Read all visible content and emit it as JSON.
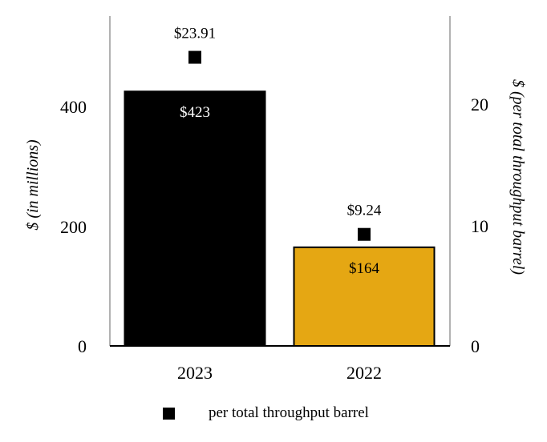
{
  "chart_data": {
    "type": "bar",
    "categories": [
      "2023",
      "2022"
    ],
    "series": [
      {
        "axis": "left",
        "values": [
          423,
          164
        ],
        "data_labels": [
          "$423",
          "$164"
        ],
        "colors": [
          "#000000",
          "#E5A713"
        ]
      },
      {
        "name": "per total throughput barrel",
        "axis": "right",
        "marker": "square",
        "values": [
          23.91,
          9.24
        ],
        "data_labels": [
          "$23.91",
          "$9.24"
        ],
        "color": "#000000"
      }
    ],
    "ylabel": "$ (in millions)",
    "ylabel_right": "$ (per total throughput barrel)",
    "ylim": [
      0,
      400
    ],
    "yticks": [
      "0",
      "200",
      "400"
    ],
    "ylim_right": [
      0,
      20
    ],
    "yticks_right": [
      "0",
      "10",
      "20"
    ],
    "legend": {
      "position": "bottom",
      "label": "per total throughput barrel"
    },
    "grid": false
  }
}
